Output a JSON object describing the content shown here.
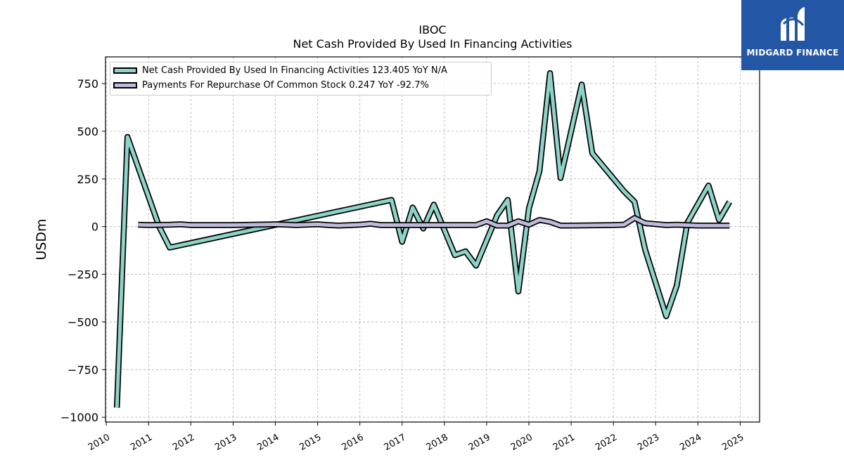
{
  "title": "IBOC",
  "subtitle": "Net Cash Provided By Used In Financing Activities",
  "logo": {
    "text": "MIDGARD FINANCE",
    "background": "#2456a6"
  },
  "chart_data": {
    "type": "line",
    "ylabel": "USDm",
    "xlabel": "",
    "xlim": [
      2009.98,
      2025.46
    ],
    "ylim": [
      -1025,
      890
    ],
    "yticks": [
      750,
      500,
      250,
      0,
      -250,
      -500,
      -750,
      -1000
    ],
    "ytick_labels": [
      "750",
      "500",
      "250",
      "0",
      "−250",
      "−500",
      "−750",
      "−1000"
    ],
    "xticks": [
      2010,
      2011,
      2012,
      2013,
      2014,
      2015,
      2016,
      2017,
      2018,
      2019,
      2020,
      2021,
      2022,
      2023,
      2024,
      2025
    ],
    "xtick_labels": [
      "2010",
      "2011",
      "2012",
      "2013",
      "2014",
      "2015",
      "2016",
      "2017",
      "2018",
      "2019",
      "2020",
      "2021",
      "2022",
      "2023",
      "2024",
      "2025"
    ],
    "grid": true,
    "legend_position": "top-left",
    "series": [
      {
        "name": "Net Cash Provided By Used In Financing Activities",
        "legend_label": "Net Cash Provided By Used In Financing Activities  123.405 YoY N/A",
        "color": "#8dd3c7",
        "x": [
          2010.25,
          2010.5,
          2011.25,
          2011.5,
          2016.75,
          2017.0,
          2017.25,
          2017.5,
          2017.75,
          2018.25,
          2018.5,
          2018.75,
          2019.25,
          2019.5,
          2019.75,
          2020.0,
          2020.25,
          2020.5,
          2020.75,
          2021.25,
          2021.5,
          2022.25,
          2022.5,
          2022.75,
          2023.25,
          2023.5,
          2023.75,
          2024.25,
          2024.5,
          2024.75
        ],
        "y": [
          -950,
          470,
          0,
          -110,
          140,
          -80,
          100,
          -10,
          115,
          -150,
          -130,
          -205,
          60,
          140,
          -340,
          95,
          290,
          805,
          255,
          745,
          385,
          185,
          130,
          -120,
          -470,
          -310,
          20,
          215,
          35,
          130
        ]
      },
      {
        "name": "Payments For Repurchase Of Common Stock",
        "legend_label": "Payments For Repurchase Of Common Stock  0.247 YoY -92.7%",
        "color": "#bebada",
        "x": [
          2010.75,
          2011.0,
          2011.5,
          2011.75,
          2012.0,
          2013.0,
          2014.0,
          2014.5,
          2015.0,
          2015.25,
          2015.5,
          2016.0,
          2016.25,
          2016.5,
          2017.0,
          2018.0,
          2018.75,
          2019.0,
          2019.25,
          2019.5,
          2019.75,
          2020.0,
          2020.25,
          2020.5,
          2020.75,
          2021.0,
          2022.0,
          2022.25,
          2022.5,
          2022.75,
          2023.25,
          2023.5,
          2024.0,
          2024.5,
          2024.75
        ],
        "y": [
          10,
          8,
          10,
          12,
          8,
          8,
          12,
          8,
          12,
          8,
          5,
          10,
          15,
          8,
          8,
          8,
          8,
          28,
          5,
          5,
          28,
          10,
          35,
          25,
          5,
          5,
          8,
          10,
          45,
          18,
          8,
          10,
          5,
          5,
          5
        ]
      }
    ]
  }
}
